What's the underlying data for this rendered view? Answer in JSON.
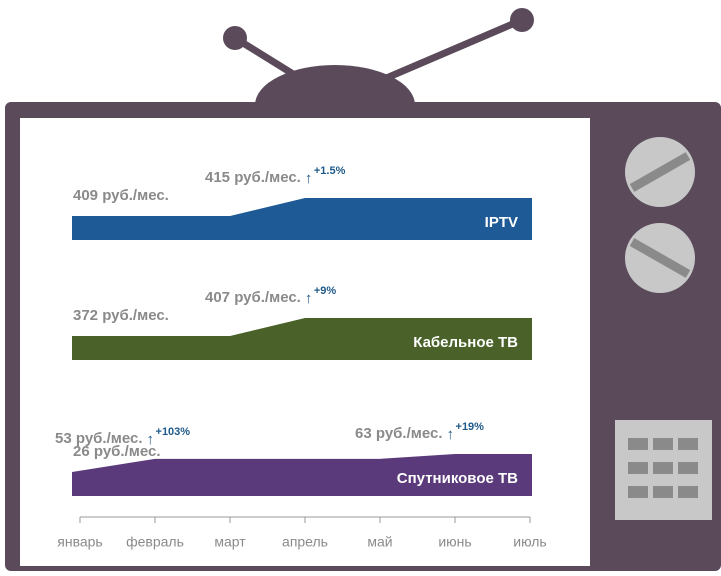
{
  "chart_data": {
    "type": "area",
    "categories": [
      "январь",
      "февраль",
      "март",
      "апрель",
      "май",
      "июнь",
      "июль"
    ],
    "series": [
      {
        "name": "IPTV",
        "color": "#1e5a96",
        "values": [
          409,
          409,
          409,
          415,
          415,
          415,
          415
        ],
        "value_labels": [
          "409 руб./мес.",
          null,
          null,
          "415 руб./мес.",
          null,
          null,
          null
        ],
        "changes": [
          null,
          null,
          null,
          "+1.5%",
          null,
          null,
          null
        ]
      },
      {
        "name": "Кабельное ТВ",
        "color": "#4a6229",
        "values": [
          372,
          372,
          372,
          407,
          407,
          407,
          407
        ],
        "value_labels": [
          "372 руб./мес.",
          null,
          null,
          "407 руб./мес.",
          null,
          null,
          null
        ],
        "changes": [
          null,
          null,
          null,
          "+9%",
          null,
          null,
          null
        ]
      },
      {
        "name": "Спутниковое ТВ",
        "color": "#5a3a7a",
        "values": [
          26,
          53,
          53,
          53,
          53,
          63,
          63
        ],
        "value_labels": [
          "26 руб./мес.",
          "53 руб./мес.",
          null,
          null,
          null,
          "63 руб./мес.",
          null
        ],
        "changes": [
          null,
          "+103%",
          null,
          null,
          null,
          "+19%",
          null
        ]
      }
    ]
  }
}
